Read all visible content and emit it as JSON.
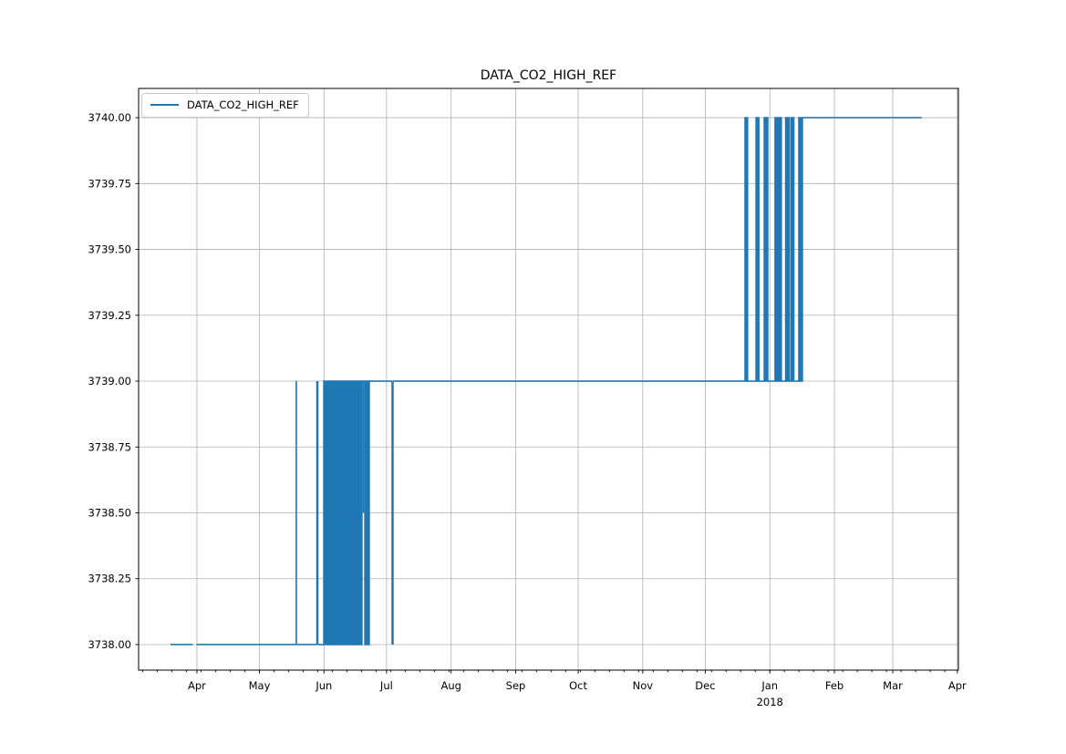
{
  "chart_data": {
    "type": "line",
    "title": "DATA_CO2_HIGH_REF",
    "xlabel": "",
    "ylabel": "",
    "grid": true,
    "legend": {
      "position": "upper left",
      "entries": [
        "DATA_CO2_HIGH_REF"
      ]
    },
    "colors": {
      "line": "#1f77b4",
      "grid": "#b0b0b0",
      "spine": "#000000",
      "background": "#ffffff",
      "text": "#000000"
    },
    "y_axis": {
      "range": [
        3737.903,
        3740.111
      ],
      "ticks": [
        {
          "label": "3738.00",
          "value": 3738.0
        },
        {
          "label": "3738.25",
          "value": 3738.25
        },
        {
          "label": "3738.50",
          "value": 3738.5
        },
        {
          "label": "3738.75",
          "value": 3738.75
        },
        {
          "label": "3739.00",
          "value": 3739.0
        },
        {
          "label": "3739.25",
          "value": 3739.25
        },
        {
          "label": "3739.50",
          "value": 3739.5
        },
        {
          "label": "3739.75",
          "value": 3739.75
        },
        {
          "label": "3740.00",
          "value": 3740.0
        }
      ]
    },
    "x_axis": {
      "unit": "days since 2017-03-01",
      "range_days": [
        3,
        396.5
      ],
      "major_ticks": [
        {
          "label": "Apr",
          "day": 31
        },
        {
          "label": "May",
          "day": 61
        },
        {
          "label": "Jun",
          "day": 92
        },
        {
          "label": "Jul",
          "day": 122
        },
        {
          "label": "Aug",
          "day": 153
        },
        {
          "label": "Sep",
          "day": 184
        },
        {
          "label": "Oct",
          "day": 214
        },
        {
          "label": "Nov",
          "day": 245
        },
        {
          "label": "Dec",
          "day": 275
        },
        {
          "label": "Jan",
          "day": 306
        },
        {
          "label": "Feb",
          "day": 337
        },
        {
          "label": "Mar",
          "day": 365
        },
        {
          "label": "Apr",
          "day": 396
        }
      ],
      "year_label": {
        "text": "2018",
        "day": 306
      },
      "minor_tick_start_day": 5,
      "minor_tick_step_days": 7
    },
    "series": [
      {
        "name": "DATA_CO2_HIGH_REF",
        "color": "#1f77b4",
        "description": "Step series: 3738 ppm from mid-Mar 2017, oscillates 3738-3739 around Jun 2017, holds 3739 Jul-Dec 2017, oscillates 3739-3740 around Jan 2018, holds 3740 until mid-Mar 2018",
        "segments": [
          {
            "t": "flat",
            "d0": 18.3,
            "d1": 29.0,
            "v": 3738.0
          },
          {
            "t": "flat",
            "d0": 30.8,
            "d1": 78.6,
            "v": 3738.0
          },
          {
            "t": "spike",
            "d": 78.7,
            "v0": 3738.0,
            "v1": 3739.0,
            "w": 1.6
          },
          {
            "t": "flat",
            "d0": 78.8,
            "d1": 88.6,
            "v": 3738.0
          },
          {
            "t": "spike",
            "d": 88.8,
            "v0": 3738.0,
            "v1": 3739.0,
            "w": 2.5
          },
          {
            "t": "flat",
            "d0": 89.0,
            "d1": 91.9,
            "v": 3738.0
          },
          {
            "t": "band",
            "d0": 91.9,
            "d1": 110.2,
            "v0": 3738.0,
            "v1": 3739.0
          },
          {
            "t": "flat",
            "d0": 110.2,
            "d1": 111.6,
            "v": 3739.0
          },
          {
            "t": "spike",
            "d": 110.9,
            "v0": 3738.5,
            "v1": 3739.0,
            "w": 1.6
          },
          {
            "t": "band",
            "d0": 111.6,
            "d1": 113.7,
            "v0": 3738.0,
            "v1": 3739.0
          },
          {
            "t": "flat",
            "d0": 113.7,
            "d1": 124.7,
            "v": 3739.0
          },
          {
            "t": "spike",
            "d": 124.9,
            "v0": 3738.0,
            "v1": 3739.0,
            "w": 2.5
          },
          {
            "t": "flat",
            "d0": 125.1,
            "d1": 294.1,
            "v": 3739.0
          },
          {
            "t": "band",
            "d0": 294.1,
            "d1": 295.3,
            "v0": 3739.0,
            "v1": 3740.0
          },
          {
            "t": "flat",
            "d0": 295.3,
            "d1": 299.4,
            "v": 3739.0
          },
          {
            "t": "band",
            "d0": 299.4,
            "d1": 300.7,
            "v0": 3739.0,
            "v1": 3740.0
          },
          {
            "t": "flat",
            "d0": 300.7,
            "d1": 303.3,
            "v": 3739.0
          },
          {
            "t": "band",
            "d0": 303.3,
            "d1": 305.0,
            "v0": 3739.0,
            "v1": 3740.0
          },
          {
            "t": "flat",
            "d0": 305.0,
            "d1": 308.5,
            "v": 3739.0
          },
          {
            "t": "band",
            "d0": 308.5,
            "d1": 311.5,
            "v0": 3739.0,
            "v1": 3740.0
          },
          {
            "t": "flat",
            "d0": 311.5,
            "d1": 313.6,
            "v": 3739.0
          },
          {
            "t": "band",
            "d0": 313.6,
            "d1": 315.3,
            "v0": 3739.0,
            "v1": 3740.0
          },
          {
            "t": "flat",
            "d0": 315.3,
            "d1": 316.2,
            "v": 3739.0
          },
          {
            "t": "band",
            "d0": 316.2,
            "d1": 317.5,
            "v0": 3739.0,
            "v1": 3740.0
          },
          {
            "t": "flat",
            "d0": 317.5,
            "d1": 319.9,
            "v": 3739.0
          },
          {
            "t": "band",
            "d0": 319.9,
            "d1": 321.6,
            "v0": 3739.0,
            "v1": 3740.0
          },
          {
            "t": "flat",
            "d0": 321.6,
            "d1": 378.9,
            "v": 3740.0
          }
        ]
      }
    ]
  }
}
